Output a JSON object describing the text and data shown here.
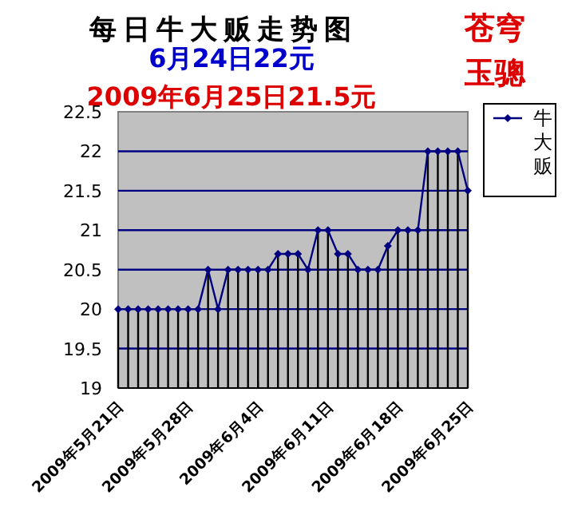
{
  "chart_data": {
    "type": "line",
    "title": "每日牛大贩走势图",
    "subtitle": "6月24日22元",
    "annotations": [
      "2009年6月25日21.5元",
      "苍穹",
      "玉骢"
    ],
    "x": [
      "2009-05-21",
      "2009-05-22",
      "2009-05-23",
      "2009-05-24",
      "2009-05-25",
      "2009-05-26",
      "2009-05-27",
      "2009-05-28",
      "2009-05-29",
      "2009-05-30",
      "2009-05-31",
      "2009-06-01",
      "2009-06-02",
      "2009-06-03",
      "2009-06-04",
      "2009-06-05",
      "2009-06-06",
      "2009-06-07",
      "2009-06-08",
      "2009-06-09",
      "2009-06-10",
      "2009-06-11",
      "2009-06-12",
      "2009-06-13",
      "2009-06-14",
      "2009-06-15",
      "2009-06-16",
      "2009-06-17",
      "2009-06-18",
      "2009-06-19",
      "2009-06-20",
      "2009-06-21",
      "2009-06-22",
      "2009-06-23",
      "2009-06-24",
      "2009-06-25"
    ],
    "series": [
      {
        "type": "bar",
        "color": "#000000",
        "values": [
          20,
          20,
          20,
          20,
          20,
          20,
          20,
          20,
          20,
          20.5,
          20,
          20.5,
          20.5,
          20.5,
          20.5,
          20.5,
          20.7,
          20.7,
          20.7,
          20.5,
          21,
          21,
          20.7,
          20.7,
          20.5,
          20.5,
          20.5,
          20.8,
          21,
          21,
          21,
          22,
          22,
          22,
          22,
          21.5
        ]
      },
      {
        "name": "牛大贩",
        "color": "#000080",
        "values": [
          20,
          20,
          20,
          20,
          20,
          20,
          20,
          20,
          20,
          20.5,
          20,
          20.5,
          20.5,
          20.5,
          20.5,
          20.5,
          20.7,
          20.7,
          20.7,
          20.5,
          21,
          21,
          20.7,
          20.7,
          20.5,
          20.5,
          20.5,
          20.8,
          21,
          21,
          21,
          22,
          22,
          22,
          22,
          21.5
        ]
      }
    ],
    "xlim": [
      "2009-05-21",
      "2009-06-25"
    ],
    "xticks": [
      {
        "value": "2009-05-21",
        "label": "2009年5月21日"
      },
      {
        "value": "2009-05-28",
        "label": "2009年5月28日"
      },
      {
        "value": "2009-06-04",
        "label": "2009年6月4日"
      },
      {
        "value": "2009-06-11",
        "label": "2009年6月11日"
      },
      {
        "value": "2009-06-18",
        "label": "2009年6月18日"
      },
      {
        "value": "2009-06-25",
        "label": "2009年6月25日"
      }
    ],
    "ylim": [
      19,
      22.5
    ],
    "yticks": [
      19,
      19.5,
      20,
      20.5,
      21,
      21.5,
      22,
      22.5
    ],
    "grid": "y",
    "legend": "right",
    "marker": "diamond",
    "line_style": "solid"
  }
}
